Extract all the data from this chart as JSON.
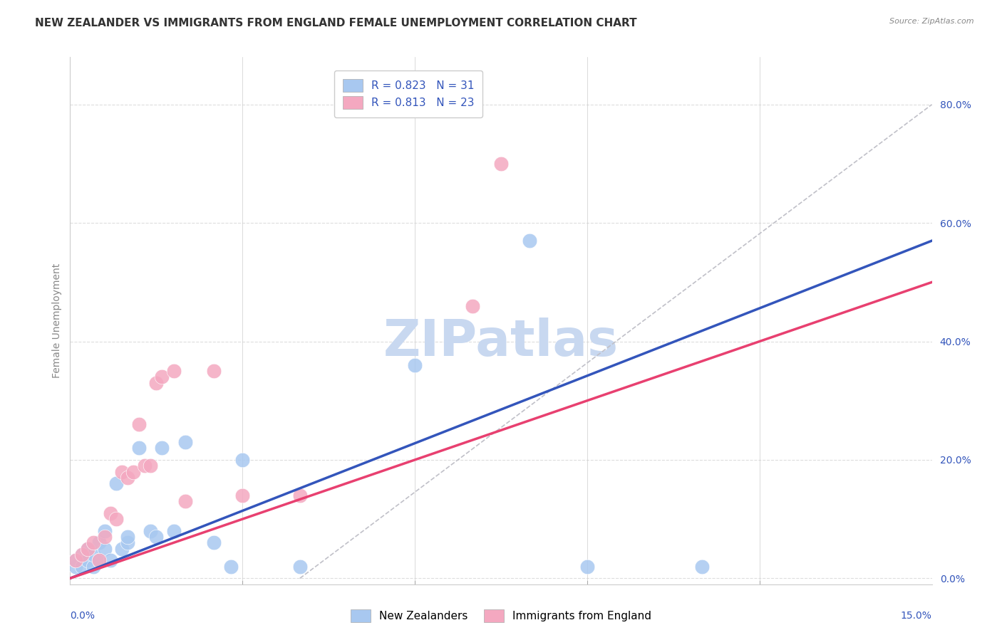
{
  "title": "NEW ZEALANDER VS IMMIGRANTS FROM ENGLAND FEMALE UNEMPLOYMENT CORRELATION CHART",
  "source": "Source: ZipAtlas.com",
  "xlabel_bottom_left": "0.0%",
  "xlabel_bottom_right": "15.0%",
  "ylabel": "Female Unemployment",
  "right_yticks": [
    "80.0%",
    "60.0%",
    "40.0%",
    "20.0%",
    "0.0%"
  ],
  "right_ytick_vals": [
    0.8,
    0.6,
    0.4,
    0.2,
    0.0
  ],
  "xmin": 0.0,
  "xmax": 0.15,
  "ymin": -0.01,
  "ymax": 0.88,
  "nz_color": "#A8C8F0",
  "eng_color": "#F4A8C0",
  "nz_line_color": "#3355BB",
  "eng_line_color": "#E84070",
  "trend_line_color": "#C0C0C8",
  "nz_R": "0.823",
  "nz_N": "31",
  "eng_R": "0.813",
  "eng_N": "23",
  "legend_label_nz": "New Zealanders",
  "legend_label_eng": "Immigrants from England",
  "nz_points": [
    [
      0.001,
      0.02
    ],
    [
      0.001,
      0.03
    ],
    [
      0.002,
      0.02
    ],
    [
      0.002,
      0.04
    ],
    [
      0.003,
      0.03
    ],
    [
      0.003,
      0.05
    ],
    [
      0.004,
      0.02
    ],
    [
      0.004,
      0.04
    ],
    [
      0.005,
      0.03
    ],
    [
      0.005,
      0.06
    ],
    [
      0.006,
      0.05
    ],
    [
      0.006,
      0.08
    ],
    [
      0.007,
      0.03
    ],
    [
      0.008,
      0.16
    ],
    [
      0.009,
      0.05
    ],
    [
      0.01,
      0.06
    ],
    [
      0.01,
      0.07
    ],
    [
      0.012,
      0.22
    ],
    [
      0.014,
      0.08
    ],
    [
      0.015,
      0.07
    ],
    [
      0.016,
      0.22
    ],
    [
      0.018,
      0.08
    ],
    [
      0.02,
      0.23
    ],
    [
      0.025,
      0.06
    ],
    [
      0.028,
      0.02
    ],
    [
      0.03,
      0.2
    ],
    [
      0.04,
      0.02
    ],
    [
      0.06,
      0.36
    ],
    [
      0.08,
      0.57
    ],
    [
      0.09,
      0.02
    ],
    [
      0.11,
      0.02
    ]
  ],
  "eng_points": [
    [
      0.001,
      0.03
    ],
    [
      0.002,
      0.04
    ],
    [
      0.003,
      0.05
    ],
    [
      0.004,
      0.06
    ],
    [
      0.005,
      0.03
    ],
    [
      0.006,
      0.07
    ],
    [
      0.007,
      0.11
    ],
    [
      0.008,
      0.1
    ],
    [
      0.009,
      0.18
    ],
    [
      0.01,
      0.17
    ],
    [
      0.011,
      0.18
    ],
    [
      0.012,
      0.26
    ],
    [
      0.013,
      0.19
    ],
    [
      0.014,
      0.19
    ],
    [
      0.015,
      0.33
    ],
    [
      0.016,
      0.34
    ],
    [
      0.018,
      0.35
    ],
    [
      0.02,
      0.13
    ],
    [
      0.025,
      0.35
    ],
    [
      0.03,
      0.14
    ],
    [
      0.04,
      0.14
    ],
    [
      0.07,
      0.46
    ],
    [
      0.075,
      0.7
    ]
  ],
  "nz_line_x0": 0.0,
  "nz_line_y0": 0.0,
  "nz_line_x1": 0.15,
  "nz_line_y1": 0.57,
  "eng_line_x0": 0.0,
  "eng_line_y0": 0.0,
  "eng_line_x1": 0.15,
  "eng_line_y1": 0.5,
  "trend_line_x0": 0.04,
  "trend_line_y0": 0.0,
  "trend_line_x1": 0.15,
  "trend_line_y1": 0.8,
  "background_color": "#FFFFFF",
  "grid_color": "#DDDDDD",
  "title_fontsize": 11,
  "axis_fontsize": 9,
  "legend_fontsize": 10,
  "watermark_text": "ZIPatlas",
  "watermark_color": "#C8D8F0",
  "watermark_fontsize": 52
}
